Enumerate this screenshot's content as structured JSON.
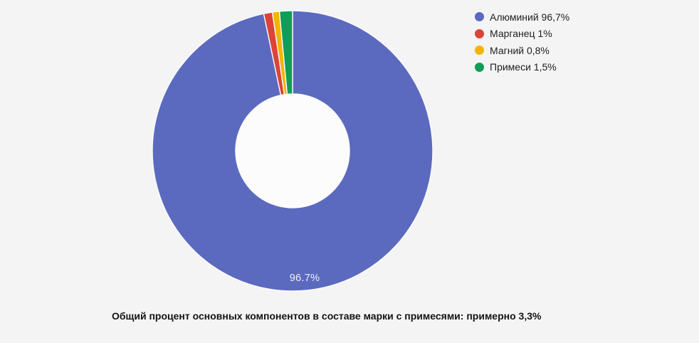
{
  "page": {
    "background": "#f4f4f5"
  },
  "chart_data": {
    "type": "pie",
    "subtype": "donut",
    "pie_hole_ratio": 0.4,
    "start_angle_deg": 0,
    "direction": "clockwise",
    "title": "",
    "categories": [
      "Алюминий",
      "Марганец",
      "Магний",
      "Примеси"
    ],
    "values": [
      96.7,
      1,
      0.8,
      1.5
    ],
    "colors": [
      "#5b6abf",
      "#db4437",
      "#f4b400",
      "#0f9d58"
    ],
    "slice_border_color": "#fbfbfc",
    "hole_color": "#fcfcfc",
    "legend_position": "right",
    "legend": [
      {
        "label": "Алюминий 96,7%",
        "color": "#5b6abf"
      },
      {
        "label": "Марганец 1%",
        "color": "#db4437"
      },
      {
        "label": "Магний 0,8%",
        "color": "#f4b400"
      },
      {
        "label": "Примеси 1,5%",
        "color": "#0f9d58"
      }
    ],
    "slice_label": {
      "text": "96.7%",
      "color": "#eff0f7"
    },
    "caption": "Общий процент основных компонентов в составе марки с примесями: примерно 3,3%"
  }
}
